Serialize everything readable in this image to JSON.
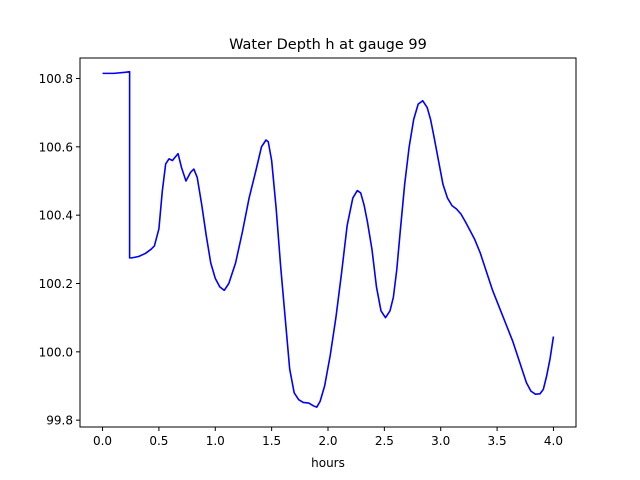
{
  "chart_data": {
    "type": "line",
    "title": "Water Depth h at gauge 99",
    "xlabel": "hours",
    "ylabel": "",
    "xlim": [
      -0.2,
      4.2
    ],
    "ylim": [
      99.78,
      100.86
    ],
    "xticks": [
      0.0,
      0.5,
      1.0,
      1.5,
      2.0,
      2.5,
      3.0,
      3.5,
      4.0
    ],
    "xtick_labels": [
      "0.0",
      "0.5",
      "1.0",
      "1.5",
      "2.0",
      "2.5",
      "3.0",
      "3.5",
      "4.0"
    ],
    "yticks": [
      99.8,
      100.0,
      100.2,
      100.4,
      100.6,
      100.8
    ],
    "ytick_labels": [
      "99.8",
      "100.0",
      "100.2",
      "100.4",
      "100.6",
      "100.8"
    ],
    "grid": false,
    "series": [
      {
        "color": "#0000ff",
        "x": [
          0.0,
          0.1,
          0.2,
          0.24,
          0.24,
          0.26,
          0.32,
          0.38,
          0.43,
          0.46,
          0.5,
          0.53,
          0.56,
          0.59,
          0.62,
          0.67,
          0.7,
          0.74,
          0.78,
          0.81,
          0.84,
          0.88,
          0.92,
          0.96,
          1.0,
          1.04,
          1.08,
          1.12,
          1.18,
          1.24,
          1.3,
          1.36,
          1.41,
          1.45,
          1.47,
          1.5,
          1.54,
          1.58,
          1.62,
          1.66,
          1.7,
          1.74,
          1.78,
          1.83,
          1.87,
          1.9,
          1.93,
          1.97,
          2.02,
          2.07,
          2.12,
          2.17,
          2.22,
          2.26,
          2.29,
          2.32,
          2.35,
          2.39,
          2.43,
          2.47,
          2.51,
          2.55,
          2.58,
          2.61,
          2.64,
          2.68,
          2.72,
          2.76,
          2.8,
          2.84,
          2.88,
          2.91,
          2.94,
          2.98,
          3.02,
          3.06,
          3.1,
          3.14,
          3.18,
          3.22,
          3.26,
          3.3,
          3.35,
          3.4,
          3.46,
          3.52,
          3.58,
          3.64,
          3.7,
          3.76,
          3.8,
          3.84,
          3.88,
          3.91,
          3.94,
          3.97,
          4.0
        ],
        "y": [
          100.815,
          100.815,
          100.818,
          100.82,
          100.275,
          100.275,
          100.279,
          100.288,
          100.3,
          100.31,
          100.36,
          100.47,
          100.55,
          100.565,
          100.56,
          100.58,
          100.54,
          100.5,
          100.525,
          100.535,
          100.51,
          100.43,
          100.34,
          100.26,
          100.215,
          100.19,
          100.18,
          100.2,
          100.26,
          100.35,
          100.45,
          100.53,
          100.6,
          100.62,
          100.615,
          100.56,
          100.42,
          100.25,
          100.1,
          99.95,
          99.88,
          99.86,
          99.852,
          99.85,
          99.842,
          99.838,
          99.855,
          99.9,
          99.99,
          100.1,
          100.23,
          100.37,
          100.45,
          100.472,
          100.465,
          100.43,
          100.38,
          100.3,
          100.19,
          100.12,
          100.1,
          100.12,
          100.16,
          100.24,
          100.35,
          100.49,
          100.6,
          100.68,
          100.725,
          100.735,
          100.715,
          100.68,
          100.63,
          100.56,
          100.49,
          100.45,
          100.428,
          100.418,
          100.403,
          100.38,
          100.355,
          100.33,
          100.29,
          100.24,
          100.18,
          100.13,
          100.08,
          100.03,
          99.97,
          99.91,
          99.885,
          99.876,
          99.877,
          99.89,
          99.93,
          99.98,
          100.045
        ]
      }
    ]
  }
}
